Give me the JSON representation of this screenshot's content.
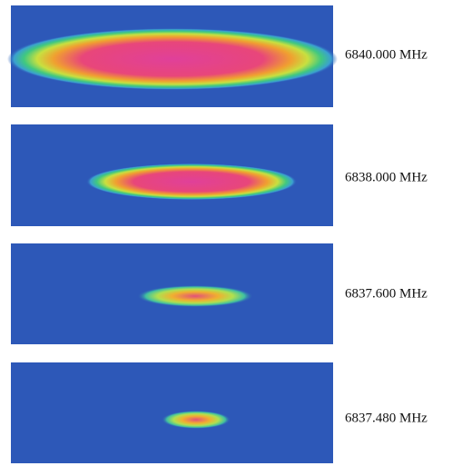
{
  "panels": [
    {
      "label": "6840.000 MHz"
    },
    {
      "label": "6838.000 MHz"
    },
    {
      "label": "6837.600 MHz"
    },
    {
      "label": "6837.480 MHz"
    }
  ]
}
